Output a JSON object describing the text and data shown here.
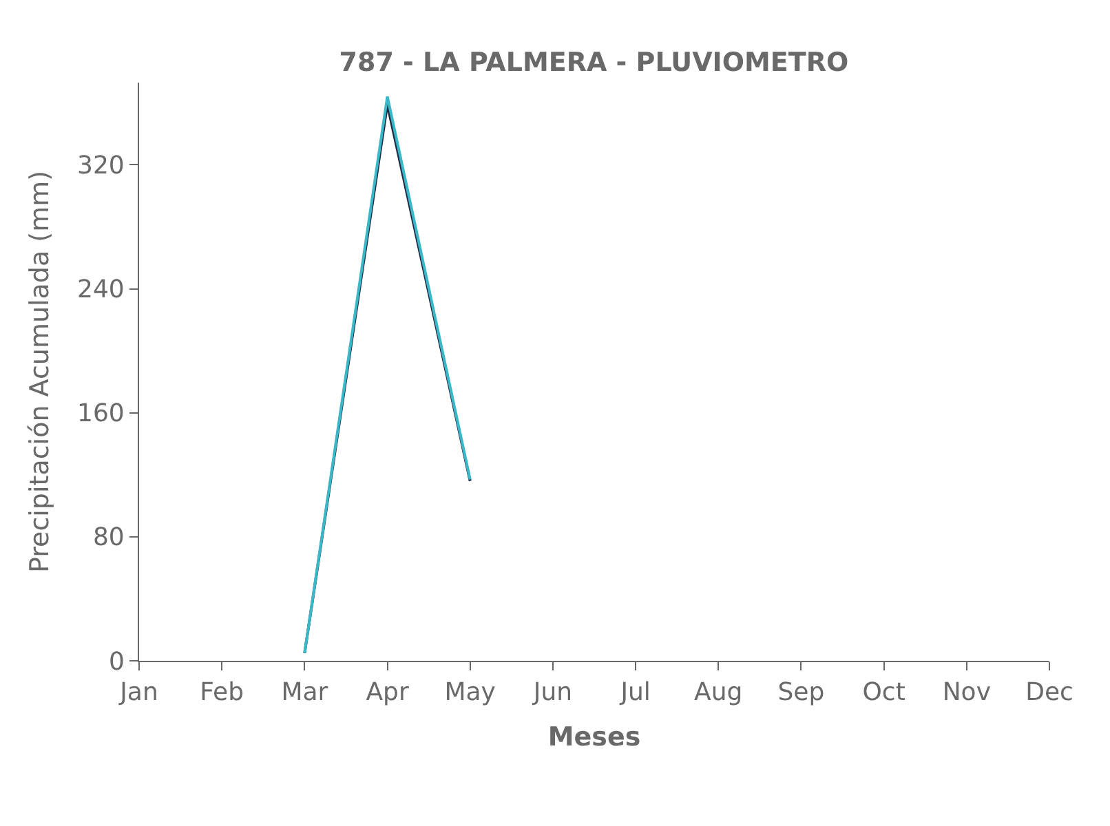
{
  "chart_data": {
    "type": "line",
    "title": "787 - LA PALMERA - PLUVIOMETRO",
    "xlabel": "Meses",
    "ylabel": "Precipitación Acumulada (mm)",
    "categories": [
      "Jan",
      "Feb",
      "Mar",
      "Apr",
      "May",
      "Jun",
      "Jul",
      "Aug",
      "Sep",
      "Oct",
      "Nov",
      "Dec"
    ],
    "series": [
      {
        "color": "#1f2a44",
        "values": [
          null,
          null,
          5,
          359,
          116,
          null,
          null,
          null,
          null,
          null,
          null,
          null
        ]
      },
      {
        "color": "#3bb8c8",
        "values": [
          null,
          null,
          5,
          364,
          117,
          null,
          null,
          null,
          null,
          null,
          null,
          null
        ]
      }
    ],
    "ylim": [
      0,
      373
    ],
    "yticks": [
      0,
      80,
      160,
      240,
      320
    ],
    "marker": "none",
    "line_style": "solid"
  }
}
